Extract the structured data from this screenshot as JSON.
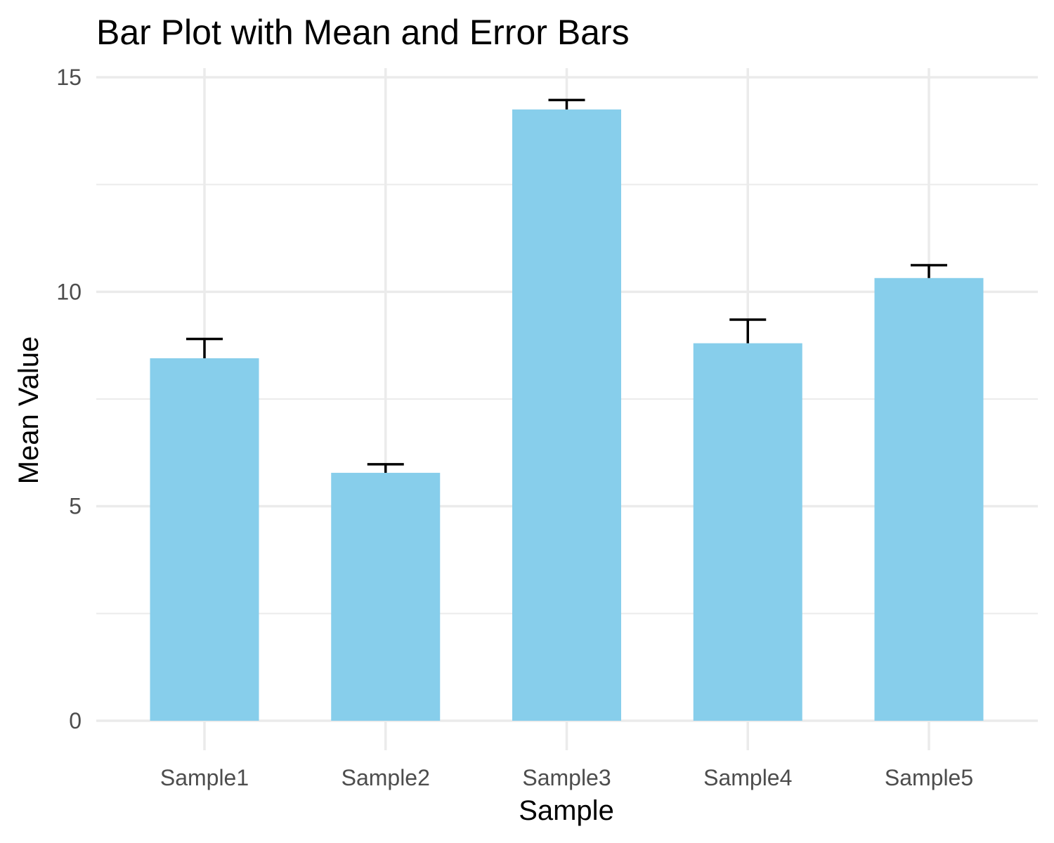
{
  "chart_data": {
    "type": "bar",
    "title": "Bar Plot with Mean and Error Bars",
    "xlabel": "Sample",
    "ylabel": "Mean Value",
    "categories": [
      "Sample1",
      "Sample2",
      "Sample3",
      "Sample4",
      "Sample5"
    ],
    "values": [
      8.45,
      5.78,
      14.25,
      8.8,
      10.32
    ],
    "error_upper": [
      8.9,
      5.98,
      14.47,
      9.35,
      10.62
    ],
    "ylim": [
      0,
      15
    ],
    "y_ticks": [
      "0",
      "5",
      "10",
      "15"
    ],
    "grid": true,
    "bar_color": "#87CEEB",
    "error_bar_color": "#000000"
  }
}
